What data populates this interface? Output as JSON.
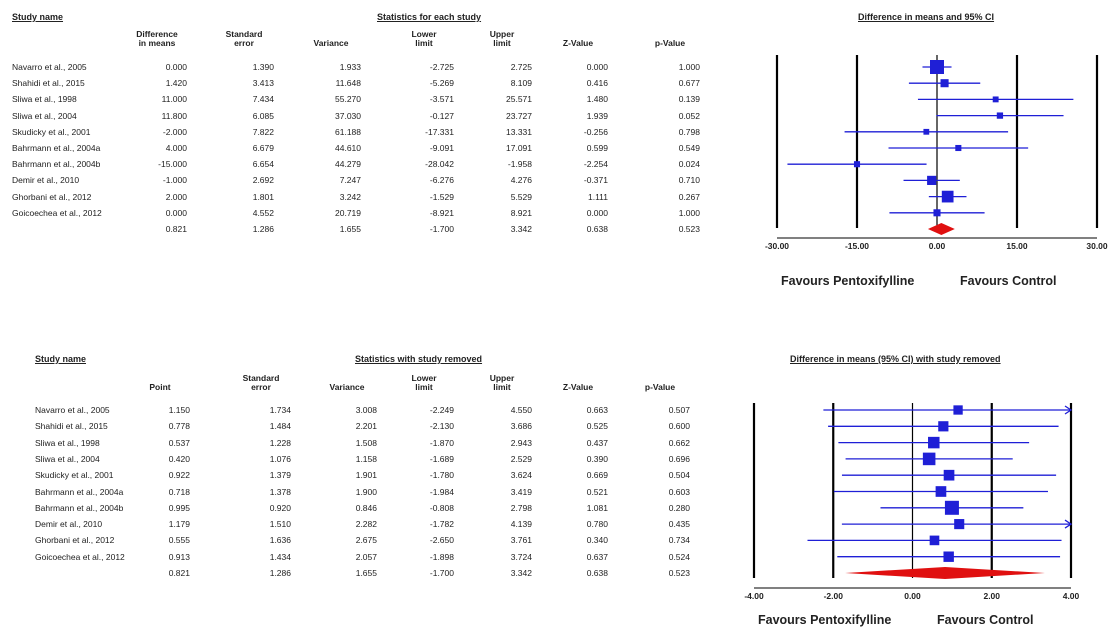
{
  "panels": [
    {
      "table_title_left": "Study name",
      "table_title_center": "Statistics for each study",
      "plot_title": "Difference in means and 95% CI",
      "columns": [
        "Difference in means",
        "Standard error",
        "Variance",
        "Lower limit",
        "Upper limit",
        "Z-Value",
        "p-Value"
      ],
      "rows": [
        {
          "name": "Navarro et al., 2005",
          "vals": [
            "0.000",
            "1.390",
            "1.933",
            "-2.725",
            "2.725",
            "0.000",
            "1.000"
          ]
        },
        {
          "name": "Shahidi et al., 2015",
          "vals": [
            "1.420",
            "3.413",
            "11.648",
            "-5.269",
            "8.109",
            "0.416",
            "0.677"
          ]
        },
        {
          "name": "Sliwa et al., 1998",
          "vals": [
            "11.000",
            "7.434",
            "55.270",
            "-3.571",
            "25.571",
            "1.480",
            "0.139"
          ]
        },
        {
          "name": "Sliwa et al., 2004",
          "vals": [
            "11.800",
            "6.085",
            "37.030",
            "-0.127",
            "23.727",
            "1.939",
            "0.052"
          ]
        },
        {
          "name": "Skudicky et al., 2001",
          "vals": [
            "-2.000",
            "7.822",
            "61.188",
            "-17.331",
            "13.331",
            "-0.256",
            "0.798"
          ]
        },
        {
          "name": "Bahrmann et al., 2004a",
          "vals": [
            "4.000",
            "6.679",
            "44.610",
            "-9.091",
            "17.091",
            "0.599",
            "0.549"
          ]
        },
        {
          "name": "Bahrmann et al., 2004b",
          "vals": [
            "-15.000",
            "6.654",
            "44.279",
            "-28.042",
            "-1.958",
            "-2.254",
            "0.024"
          ]
        },
        {
          "name": "Demir et al., 2010",
          "vals": [
            "-1.000",
            "2.692",
            "7.247",
            "-6.276",
            "4.276",
            "-0.371",
            "0.710"
          ]
        },
        {
          "name": "Ghorbani et al., 2012",
          "vals": [
            "2.000",
            "1.801",
            "3.242",
            "-1.529",
            "5.529",
            "1.111",
            "0.267"
          ]
        },
        {
          "name": "Goicoechea et al., 2012",
          "vals": [
            "0.000",
            "4.552",
            "20.719",
            "-8.921",
            "8.921",
            "0.000",
            "1.000"
          ]
        }
      ],
      "summary": [
        "0.821",
        "1.286",
        "1.655",
        "-1.700",
        "3.342",
        "0.638",
        "0.523"
      ],
      "favours_left": "Favours Pentoxifylline",
      "favours_right": "Favours Control"
    },
    {
      "table_title_left": "Study name",
      "table_title_center": "Statistics with study removed",
      "plot_title": "Difference in means (95% CI) with study removed",
      "columns": [
        "Point",
        "Standard error",
        "Variance",
        "Lower limit",
        "Upper limit",
        "Z-Value",
        "p-Value"
      ],
      "rows": [
        {
          "name": "Navarro et al., 2005",
          "vals": [
            "1.150",
            "1.734",
            "3.008",
            "-2.249",
            "4.550",
            "0.663",
            "0.507"
          ]
        },
        {
          "name": "Shahidi et al., 2015",
          "vals": [
            "0.778",
            "1.484",
            "2.201",
            "-2.130",
            "3.686",
            "0.525",
            "0.600"
          ]
        },
        {
          "name": "Sliwa et al., 1998",
          "vals": [
            "0.537",
            "1.228",
            "1.508",
            "-1.870",
            "2.943",
            "0.437",
            "0.662"
          ]
        },
        {
          "name": "Sliwa et al., 2004",
          "vals": [
            "0.420",
            "1.076",
            "1.158",
            "-1.689",
            "2.529",
            "0.390",
            "0.696"
          ]
        },
        {
          "name": "Skudicky et al., 2001",
          "vals": [
            "0.922",
            "1.379",
            "1.901",
            "-1.780",
            "3.624",
            "0.669",
            "0.504"
          ]
        },
        {
          "name": "Bahrmann et al., 2004a",
          "vals": [
            "0.718",
            "1.378",
            "1.900",
            "-1.984",
            "3.419",
            "0.521",
            "0.603"
          ]
        },
        {
          "name": "Bahrmann et al., 2004b",
          "vals": [
            "0.995",
            "0.920",
            "0.846",
            "-0.808",
            "2.798",
            "1.081",
            "0.280"
          ]
        },
        {
          "name": "Demir et al., 2010",
          "vals": [
            "1.179",
            "1.510",
            "2.282",
            "-1.782",
            "4.139",
            "0.780",
            "0.435"
          ]
        },
        {
          "name": "Ghorbani et al., 2012",
          "vals": [
            "0.555",
            "1.636",
            "2.675",
            "-2.650",
            "3.761",
            "0.340",
            "0.734"
          ]
        },
        {
          "name": "Goicoechea et al., 2012",
          "vals": [
            "0.913",
            "1.434",
            "2.057",
            "-1.898",
            "3.724",
            "0.637",
            "0.524"
          ]
        }
      ],
      "summary": [
        "0.821",
        "1.286",
        "1.655",
        "-1.700",
        "3.342",
        "0.638",
        "0.523"
      ],
      "favours_left": "Favours Pentoxifylline",
      "favours_right": "Favours Control"
    }
  ],
  "chart_data": [
    {
      "type": "forest",
      "title": "Difference in means and 95% CI",
      "studies": [
        "Navarro et al., 2005",
        "Shahidi et al., 2015",
        "Sliwa et al., 1998",
        "Sliwa et al., 2004",
        "Skudicky et al., 2001",
        "Bahrmann et al., 2004a",
        "Bahrmann et al., 2004b",
        "Demir et al., 2010",
        "Ghorbani et al., 2012",
        "Goicoechea et al., 2012"
      ],
      "point": [
        0.0,
        1.42,
        11.0,
        11.8,
        -2.0,
        4.0,
        -15.0,
        -1.0,
        2.0,
        0.0
      ],
      "lower": [
        -2.725,
        -5.269,
        -3.571,
        -0.127,
        -17.331,
        -9.091,
        -28.042,
        -6.276,
        -1.529,
        -8.921
      ],
      "upper": [
        2.725,
        8.109,
        25.571,
        23.727,
        13.331,
        17.091,
        -1.958,
        4.276,
        5.529,
        8.921
      ],
      "weight": [
        1.39,
        3.413,
        7.434,
        6.085,
        7.822,
        6.679,
        6.654,
        2.692,
        1.801,
        4.552
      ],
      "summary": {
        "point": 0.821,
        "lower": -1.7,
        "upper": 3.342
      },
      "xlim": [
        -30,
        30
      ],
      "ticks": [
        "-30.00",
        "-15.00",
        "0.00",
        "15.00",
        "30.00"
      ],
      "tick_values": [
        -30,
        -15,
        0,
        15,
        30
      ]
    },
    {
      "type": "forest",
      "title": "Difference in means (95% CI) with study removed",
      "studies": [
        "Navarro et al., 2005",
        "Shahidi et al., 2015",
        "Sliwa et al., 1998",
        "Sliwa et al., 2004",
        "Skudicky et al., 2001",
        "Bahrmann et al., 2004a",
        "Bahrmann et al., 2004b",
        "Demir et al., 2010",
        "Ghorbani et al., 2012",
        "Goicoechea et al., 2012"
      ],
      "point": [
        1.15,
        0.778,
        0.537,
        0.42,
        0.922,
        0.718,
        0.995,
        1.179,
        0.555,
        0.913
      ],
      "lower": [
        -2.249,
        -2.13,
        -1.87,
        -1.689,
        -1.78,
        -1.984,
        -0.808,
        -1.782,
        -2.65,
        -1.898
      ],
      "upper": [
        4.55,
        3.686,
        2.943,
        2.529,
        3.624,
        3.419,
        2.798,
        4.139,
        3.761,
        3.724
      ],
      "weight": [
        1.734,
        1.484,
        1.228,
        1.076,
        1.379,
        1.378,
        0.92,
        1.51,
        1.636,
        1.434
      ],
      "summary": {
        "point": 0.821,
        "lower": -1.7,
        "upper": 3.342
      },
      "xlim": [
        -4,
        4
      ],
      "ticks": [
        "-4.00",
        "-2.00",
        "0.00",
        "2.00",
        "4.00"
      ],
      "tick_values": [
        -4,
        -2,
        0,
        2,
        4
      ]
    }
  ],
  "colors": {
    "marker": "#1f1fd6",
    "summary": "#e01010",
    "axis": "#000000"
  }
}
